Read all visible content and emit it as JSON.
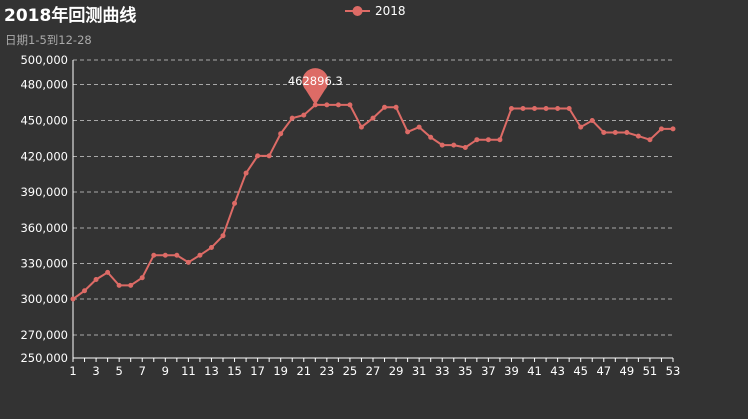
{
  "title": "2018年回测曲线",
  "subtitle": "日期1-5到12-28",
  "colors": {
    "background": "#333333",
    "series": "#dd6b66",
    "text": "#ffffff",
    "subtext": "#aaaaaa"
  },
  "chart_data": {
    "type": "line",
    "title": "2018年回测曲线",
    "subtitle": "日期1-5到12-28",
    "xlabel": "",
    "ylabel": "",
    "x": [
      1,
      2,
      3,
      4,
      5,
      6,
      7,
      8,
      9,
      10,
      11,
      12,
      13,
      14,
      15,
      16,
      17,
      18,
      19,
      20,
      21,
      22,
      23,
      24,
      25,
      26,
      27,
      28,
      29,
      30,
      31,
      32,
      33,
      34,
      35,
      36,
      37,
      38,
      39,
      40,
      41,
      42,
      43,
      44,
      45,
      46,
      47,
      48,
      49,
      50,
      51,
      52,
      53
    ],
    "x_tick_labels": [
      "1",
      "3",
      "5",
      "7",
      "9",
      "11",
      "13",
      "15",
      "17",
      "19",
      "21",
      "23",
      "25",
      "27",
      "29",
      "31",
      "33",
      "35",
      "37",
      "39",
      "41",
      "43",
      "45",
      "47",
      "49",
      "51",
      "53"
    ],
    "y_tick_values": [
      250000,
      270000,
      300000,
      330000,
      360000,
      390000,
      420000,
      450000,
      480000,
      500000
    ],
    "y_tick_labels": [
      "250,000",
      "270,000",
      "300,000",
      "330,000",
      "360,000",
      "390,000",
      "420,000",
      "450,000",
      "480,000",
      "500,000"
    ],
    "ylim": [
      250000,
      500000
    ],
    "grid": true,
    "legend_position": "top-center",
    "series": [
      {
        "name": "2018",
        "color": "#dd6b66",
        "values": [
          300000,
          307000,
          316500,
          322500,
          311500,
          311500,
          318000,
          337000,
          337000,
          337000,
          331000,
          337000,
          343500,
          353500,
          380500,
          406000,
          420500,
          420500,
          439000,
          452000,
          454500,
          463000,
          463000,
          463000,
          463000,
          444500,
          452000,
          461000,
          461000,
          440500,
          444500,
          436000,
          429500,
          429500,
          427500,
          434000,
          434000,
          434000,
          460000,
          460000,
          460000,
          460000,
          460000,
          460000,
          444500,
          450000,
          440000,
          440000,
          440000,
          437000,
          434000,
          443000,
          443000
        ]
      }
    ],
    "max_marker": {
      "x": 22,
      "value": 462896.3,
      "label": "462896.3"
    }
  }
}
